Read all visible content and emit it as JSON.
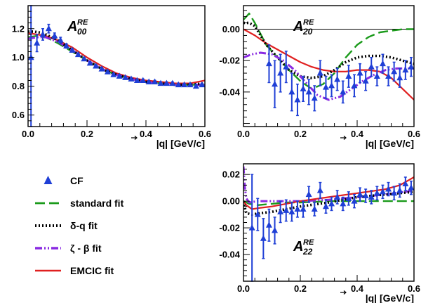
{
  "chart_data": [
    {
      "type": "scatter",
      "title": {
        "main": "A",
        "sub": "00",
        "sup": "RE"
      },
      "xlabel": "|q| [GeV/c]",
      "xlim": [
        0,
        0.6
      ],
      "ylim": [
        0.52,
        1.36
      ],
      "xticks": [
        0.0,
        0.2,
        0.4,
        0.6
      ],
      "xtick_labels": [
        "0.0",
        "0.2",
        "0.4",
        "0.6"
      ],
      "yticks": [
        0.6,
        0.8,
        1.0,
        1.2
      ],
      "ytick_labels": [
        "0.6",
        "0.8",
        "1.0",
        "1.2"
      ],
      "zero_line": false,
      "points": [
        {
          "x": 0.01,
          "y": 1.0,
          "err": 0.55
        },
        {
          "x": 0.03,
          "y": 1.1,
          "err": 0.06
        },
        {
          "x": 0.05,
          "y": 1.16,
          "err": 0.04
        },
        {
          "x": 0.07,
          "y": 1.2,
          "err": 0.03
        },
        {
          "x": 0.09,
          "y": 1.15,
          "err": 0.02
        },
        {
          "x": 0.11,
          "y": 1.12,
          "err": 0.02
        },
        {
          "x": 0.13,
          "y": 1.08,
          "err": 0.015
        },
        {
          "x": 0.15,
          "y": 1.05,
          "err": 0.01
        },
        {
          "x": 0.17,
          "y": 1.02,
          "err": 0.01
        },
        {
          "x": 0.19,
          "y": 0.99,
          "err": 0.01
        },
        {
          "x": 0.21,
          "y": 0.96,
          "err": 0.01
        },
        {
          "x": 0.23,
          "y": 0.94,
          "err": 0.01
        },
        {
          "x": 0.25,
          "y": 0.92,
          "err": 0.01
        },
        {
          "x": 0.27,
          "y": 0.9,
          "err": 0.01
        },
        {
          "x": 0.29,
          "y": 0.88,
          "err": 0.01
        },
        {
          "x": 0.31,
          "y": 0.87,
          "err": 0.01
        },
        {
          "x": 0.33,
          "y": 0.86,
          "err": 0.01
        },
        {
          "x": 0.35,
          "y": 0.85,
          "err": 0.01
        },
        {
          "x": 0.37,
          "y": 0.84,
          "err": 0.01
        },
        {
          "x": 0.39,
          "y": 0.84,
          "err": 0.01
        },
        {
          "x": 0.41,
          "y": 0.83,
          "err": 0.01
        },
        {
          "x": 0.43,
          "y": 0.83,
          "err": 0.01
        },
        {
          "x": 0.45,
          "y": 0.82,
          "err": 0.01
        },
        {
          "x": 0.47,
          "y": 0.82,
          "err": 0.01
        },
        {
          "x": 0.49,
          "y": 0.82,
          "err": 0.01
        },
        {
          "x": 0.51,
          "y": 0.81,
          "err": 0.01
        },
        {
          "x": 0.53,
          "y": 0.81,
          "err": 0.01
        },
        {
          "x": 0.55,
          "y": 0.81,
          "err": 0.01
        },
        {
          "x": 0.57,
          "y": 0.8,
          "err": 0.01
        },
        {
          "x": 0.59,
          "y": 0.81,
          "err": 0.01
        }
      ],
      "series": [
        {
          "key": "emcic",
          "x": [
            0.0,
            0.03,
            0.06,
            0.1,
            0.15,
            0.2,
            0.25,
            0.3,
            0.35,
            0.4,
            0.45,
            0.5,
            0.55,
            0.6
          ],
          "y": [
            1.17,
            1.16,
            1.15,
            1.12,
            1.07,
            1.0,
            0.94,
            0.89,
            0.86,
            0.84,
            0.83,
            0.82,
            0.82,
            0.84
          ]
        },
        {
          "key": "standard",
          "x": [
            0.0,
            0.03,
            0.06,
            0.1,
            0.15,
            0.2,
            0.25,
            0.3,
            0.35,
            0.4,
            0.45,
            0.5,
            0.55,
            0.6
          ],
          "y": [
            1.14,
            1.15,
            1.14,
            1.1,
            1.04,
            0.98,
            0.92,
            0.88,
            0.85,
            0.83,
            0.82,
            0.81,
            0.81,
            0.81
          ]
        },
        {
          "key": "zeta",
          "x": [
            0.0,
            0.03,
            0.06,
            0.1,
            0.15,
            0.2,
            0.25,
            0.3,
            0.35,
            0.4,
            0.45,
            0.5,
            0.55,
            0.6
          ],
          "y": [
            1.13,
            1.14,
            1.14,
            1.11,
            1.05,
            0.98,
            0.92,
            0.88,
            0.85,
            0.83,
            0.82,
            0.81,
            0.81,
            0.81
          ]
        },
        {
          "key": "delta",
          "x": [
            0.0,
            0.02,
            0.05,
            0.1,
            0.15,
            0.2,
            0.25,
            0.3,
            0.35,
            0.4,
            0.45,
            0.5,
            0.55,
            0.6
          ],
          "y": [
            1.18,
            1.18,
            1.17,
            1.12,
            1.05,
            0.98,
            0.92,
            0.88,
            0.85,
            0.83,
            0.82,
            0.81,
            0.81,
            0.82
          ]
        }
      ]
    },
    {
      "type": "scatter",
      "title": {
        "main": "A",
        "sub": "20",
        "sup": "RE"
      },
      "xlabel": "|q| [GeV/c]",
      "xlim": [
        0,
        0.6
      ],
      "ylim": [
        -0.062,
        0.015
      ],
      "xticks": [
        0.0,
        0.2,
        0.4,
        0.6
      ],
      "xtick_labels": [
        "0.0",
        "0.2",
        "0.4",
        "0.6"
      ],
      "yticks": [
        -0.04,
        -0.02,
        0.0
      ],
      "ytick_labels": [
        "-0.04",
        "-0.02",
        "0.00"
      ],
      "zero_line": true,
      "points": [
        {
          "x": 0.09,
          "y": -0.022,
          "err": 0.012
        },
        {
          "x": 0.11,
          "y": -0.035,
          "err": 0.015
        },
        {
          "x": 0.13,
          "y": -0.028,
          "err": 0.012
        },
        {
          "x": 0.15,
          "y": -0.024,
          "err": 0.01
        },
        {
          "x": 0.17,
          "y": -0.04,
          "err": 0.012
        },
        {
          "x": 0.19,
          "y": -0.045,
          "err": 0.01
        },
        {
          "x": 0.21,
          "y": -0.038,
          "err": 0.008
        },
        {
          "x": 0.23,
          "y": -0.04,
          "err": 0.008
        },
        {
          "x": 0.25,
          "y": -0.044,
          "err": 0.008
        },
        {
          "x": 0.27,
          "y": -0.028,
          "err": 0.008
        },
        {
          "x": 0.29,
          "y": -0.037,
          "err": 0.007
        },
        {
          "x": 0.31,
          "y": -0.036,
          "err": 0.007
        },
        {
          "x": 0.33,
          "y": -0.032,
          "err": 0.007
        },
        {
          "x": 0.35,
          "y": -0.04,
          "err": 0.007
        },
        {
          "x": 0.37,
          "y": -0.03,
          "err": 0.007
        },
        {
          "x": 0.39,
          "y": -0.036,
          "err": 0.007
        },
        {
          "x": 0.41,
          "y": -0.028,
          "err": 0.006
        },
        {
          "x": 0.43,
          "y": -0.033,
          "err": 0.006
        },
        {
          "x": 0.45,
          "y": -0.024,
          "err": 0.006
        },
        {
          "x": 0.47,
          "y": -0.03,
          "err": 0.006
        },
        {
          "x": 0.49,
          "y": -0.022,
          "err": 0.006
        },
        {
          "x": 0.51,
          "y": -0.03,
          "err": 0.006
        },
        {
          "x": 0.53,
          "y": -0.027,
          "err": 0.006
        },
        {
          "x": 0.55,
          "y": -0.031,
          "err": 0.006
        },
        {
          "x": 0.57,
          "y": -0.026,
          "err": 0.006
        },
        {
          "x": 0.59,
          "y": -0.024,
          "err": 0.006
        }
      ],
      "series": [
        {
          "key": "standard",
          "x": [
            0.0,
            0.02,
            0.04,
            0.08,
            0.12,
            0.16,
            0.2,
            0.24,
            0.28,
            0.32,
            0.36,
            0.4,
            0.44,
            0.48,
            0.52,
            0.56,
            0.6
          ],
          "y": [
            0.006,
            0.01,
            0.004,
            -0.01,
            -0.018,
            -0.026,
            -0.033,
            -0.038,
            -0.035,
            -0.028,
            -0.018,
            -0.01,
            -0.005,
            -0.002,
            -0.001,
            0.0,
            0.0
          ]
        },
        {
          "key": "emcic",
          "x": [
            0.0,
            0.04,
            0.08,
            0.12,
            0.16,
            0.2,
            0.24,
            0.28,
            0.32,
            0.36,
            0.4,
            0.44,
            0.48,
            0.52,
            0.56,
            0.6
          ],
          "y": [
            0.0,
            -0.004,
            -0.009,
            -0.013,
            -0.017,
            -0.021,
            -0.024,
            -0.026,
            -0.027,
            -0.027,
            -0.026,
            -0.026,
            -0.027,
            -0.031,
            -0.038,
            -0.045
          ]
        },
        {
          "key": "delta",
          "x": [
            0.0,
            0.02,
            0.04,
            0.08,
            0.12,
            0.16,
            0.2,
            0.24,
            0.28,
            0.32,
            0.36,
            0.4,
            0.44,
            0.48,
            0.52,
            0.56,
            0.6
          ],
          "y": [
            0.004,
            0.004,
            0.002,
            -0.01,
            -0.018,
            -0.026,
            -0.03,
            -0.031,
            -0.03,
            -0.026,
            -0.021,
            -0.018,
            -0.017,
            -0.017,
            -0.018,
            -0.02,
            -0.022
          ]
        },
        {
          "key": "zeta",
          "x": [
            0.0,
            0.03,
            0.06,
            0.1,
            0.14,
            0.18,
            0.22,
            0.26,
            0.3,
            0.34,
            0.38,
            0.42,
            0.46,
            0.5,
            0.54,
            0.58,
            0.6
          ],
          "y": [
            -0.018,
            -0.016,
            -0.015,
            -0.016,
            -0.02,
            -0.026,
            -0.034,
            -0.042,
            -0.045,
            -0.043,
            -0.038,
            -0.033,
            -0.029,
            -0.026,
            -0.025,
            -0.025,
            -0.025
          ]
        }
      ]
    },
    {
      "type": "scatter",
      "title": {
        "main": "A",
        "sub": "22",
        "sup": "RE"
      },
      "xlabel": "|q| [GeV/c]",
      "xlim": [
        0,
        0.6
      ],
      "ylim": [
        -0.06,
        0.028
      ],
      "xticks": [
        0.0,
        0.2,
        0.4,
        0.6
      ],
      "xtick_labels": [
        "0.0",
        "0.2",
        "0.4",
        "0.6"
      ],
      "yticks": [
        -0.04,
        -0.02,
        0.0,
        0.02
      ],
      "ytick_labels": [
        "-0.04",
        "-0.02",
        "0.00",
        "0.02"
      ],
      "zero_line": false,
      "points": [
        {
          "x": 0.03,
          "y": -0.02,
          "err": 0.04
        },
        {
          "x": 0.05,
          "y": -0.01,
          "err": 0.012
        },
        {
          "x": 0.07,
          "y": -0.028,
          "err": 0.015
        },
        {
          "x": 0.09,
          "y": -0.018,
          "err": 0.012
        },
        {
          "x": 0.11,
          "y": -0.022,
          "err": 0.01
        },
        {
          "x": 0.13,
          "y": -0.008,
          "err": 0.008
        },
        {
          "x": 0.15,
          "y": -0.007,
          "err": 0.008
        },
        {
          "x": 0.17,
          "y": -0.008,
          "err": 0.007
        },
        {
          "x": 0.19,
          "y": -0.006,
          "err": 0.006
        },
        {
          "x": 0.21,
          "y": -0.006,
          "err": 0.006
        },
        {
          "x": 0.23,
          "y": 0.005,
          "err": 0.006
        },
        {
          "x": 0.25,
          "y": -0.006,
          "err": 0.005
        },
        {
          "x": 0.27,
          "y": 0.008,
          "err": 0.006
        },
        {
          "x": 0.29,
          "y": -0.004,
          "err": 0.005
        },
        {
          "x": 0.31,
          "y": -0.002,
          "err": 0.005
        },
        {
          "x": 0.33,
          "y": 0.003,
          "err": 0.005
        },
        {
          "x": 0.35,
          "y": -0.002,
          "err": 0.005
        },
        {
          "x": 0.37,
          "y": 0.002,
          "err": 0.005
        },
        {
          "x": 0.39,
          "y": 0.0,
          "err": 0.005
        },
        {
          "x": 0.41,
          "y": 0.005,
          "err": 0.005
        },
        {
          "x": 0.43,
          "y": 0.004,
          "err": 0.005
        },
        {
          "x": 0.45,
          "y": 0.003,
          "err": 0.005
        },
        {
          "x": 0.47,
          "y": 0.006,
          "err": 0.005
        },
        {
          "x": 0.49,
          "y": 0.007,
          "err": 0.005
        },
        {
          "x": 0.51,
          "y": 0.009,
          "err": 0.005
        },
        {
          "x": 0.53,
          "y": 0.006,
          "err": 0.005
        },
        {
          "x": 0.55,
          "y": 0.008,
          "err": 0.005
        },
        {
          "x": 0.57,
          "y": 0.013,
          "err": 0.005
        },
        {
          "x": 0.59,
          "y": 0.01,
          "err": 0.005
        }
      ],
      "series": [
        {
          "key": "standard",
          "x": [
            0.0,
            0.02,
            0.05,
            0.1,
            0.15,
            0.2,
            0.3,
            0.4,
            0.5,
            0.6
          ],
          "y": [
            0.0,
            -0.002,
            -0.003,
            -0.002,
            -0.001,
            -0.001,
            0.0,
            0.0,
            0.0,
            0.0
          ]
        },
        {
          "key": "zeta",
          "x": [
            0.0,
            0.005,
            0.01,
            0.02,
            0.05,
            0.1,
            0.2,
            0.3,
            0.4,
            0.5,
            0.6
          ],
          "y": [
            0.026,
            0.01,
            0.002,
            -0.001,
            0.0,
            0.0,
            0.0,
            0.001,
            0.003,
            0.005,
            0.008
          ]
        },
        {
          "key": "emcic",
          "x": [
            0.0,
            0.01,
            0.03,
            0.06,
            0.1,
            0.15,
            0.2,
            0.3,
            0.4,
            0.5,
            0.55,
            0.6
          ],
          "y": [
            0.0,
            -0.003,
            -0.006,
            -0.005,
            -0.004,
            -0.002,
            0.0,
            0.003,
            0.006,
            0.009,
            0.012,
            0.018
          ]
        },
        {
          "key": "delta",
          "x": [
            0.0,
            0.005,
            0.01,
            0.03,
            0.06,
            0.1,
            0.15,
            0.2,
            0.3,
            0.4,
            0.5,
            0.6
          ],
          "y": [
            0.0,
            -0.005,
            -0.009,
            -0.01,
            -0.009,
            -0.008,
            -0.006,
            -0.004,
            -0.001,
            0.003,
            0.005,
            0.007
          ]
        }
      ]
    }
  ],
  "legend": {
    "items": [
      {
        "key": "cf",
        "label": "CF",
        "kind": "marker"
      },
      {
        "key": "standard",
        "label": "standard fit",
        "kind": "line"
      },
      {
        "key": "delta",
        "label": "δ-q fit",
        "kind": "line"
      },
      {
        "key": "zeta",
        "label": "ζ - β fit",
        "kind": "line"
      },
      {
        "key": "emcic",
        "label": "EMCIC fit",
        "kind": "line"
      }
    ]
  },
  "colors": {
    "cf": "#1f3fd6",
    "standard": "#1a9a1a",
    "delta": "#000000",
    "zeta": "#8a2be2",
    "emcic": "#e02020"
  }
}
